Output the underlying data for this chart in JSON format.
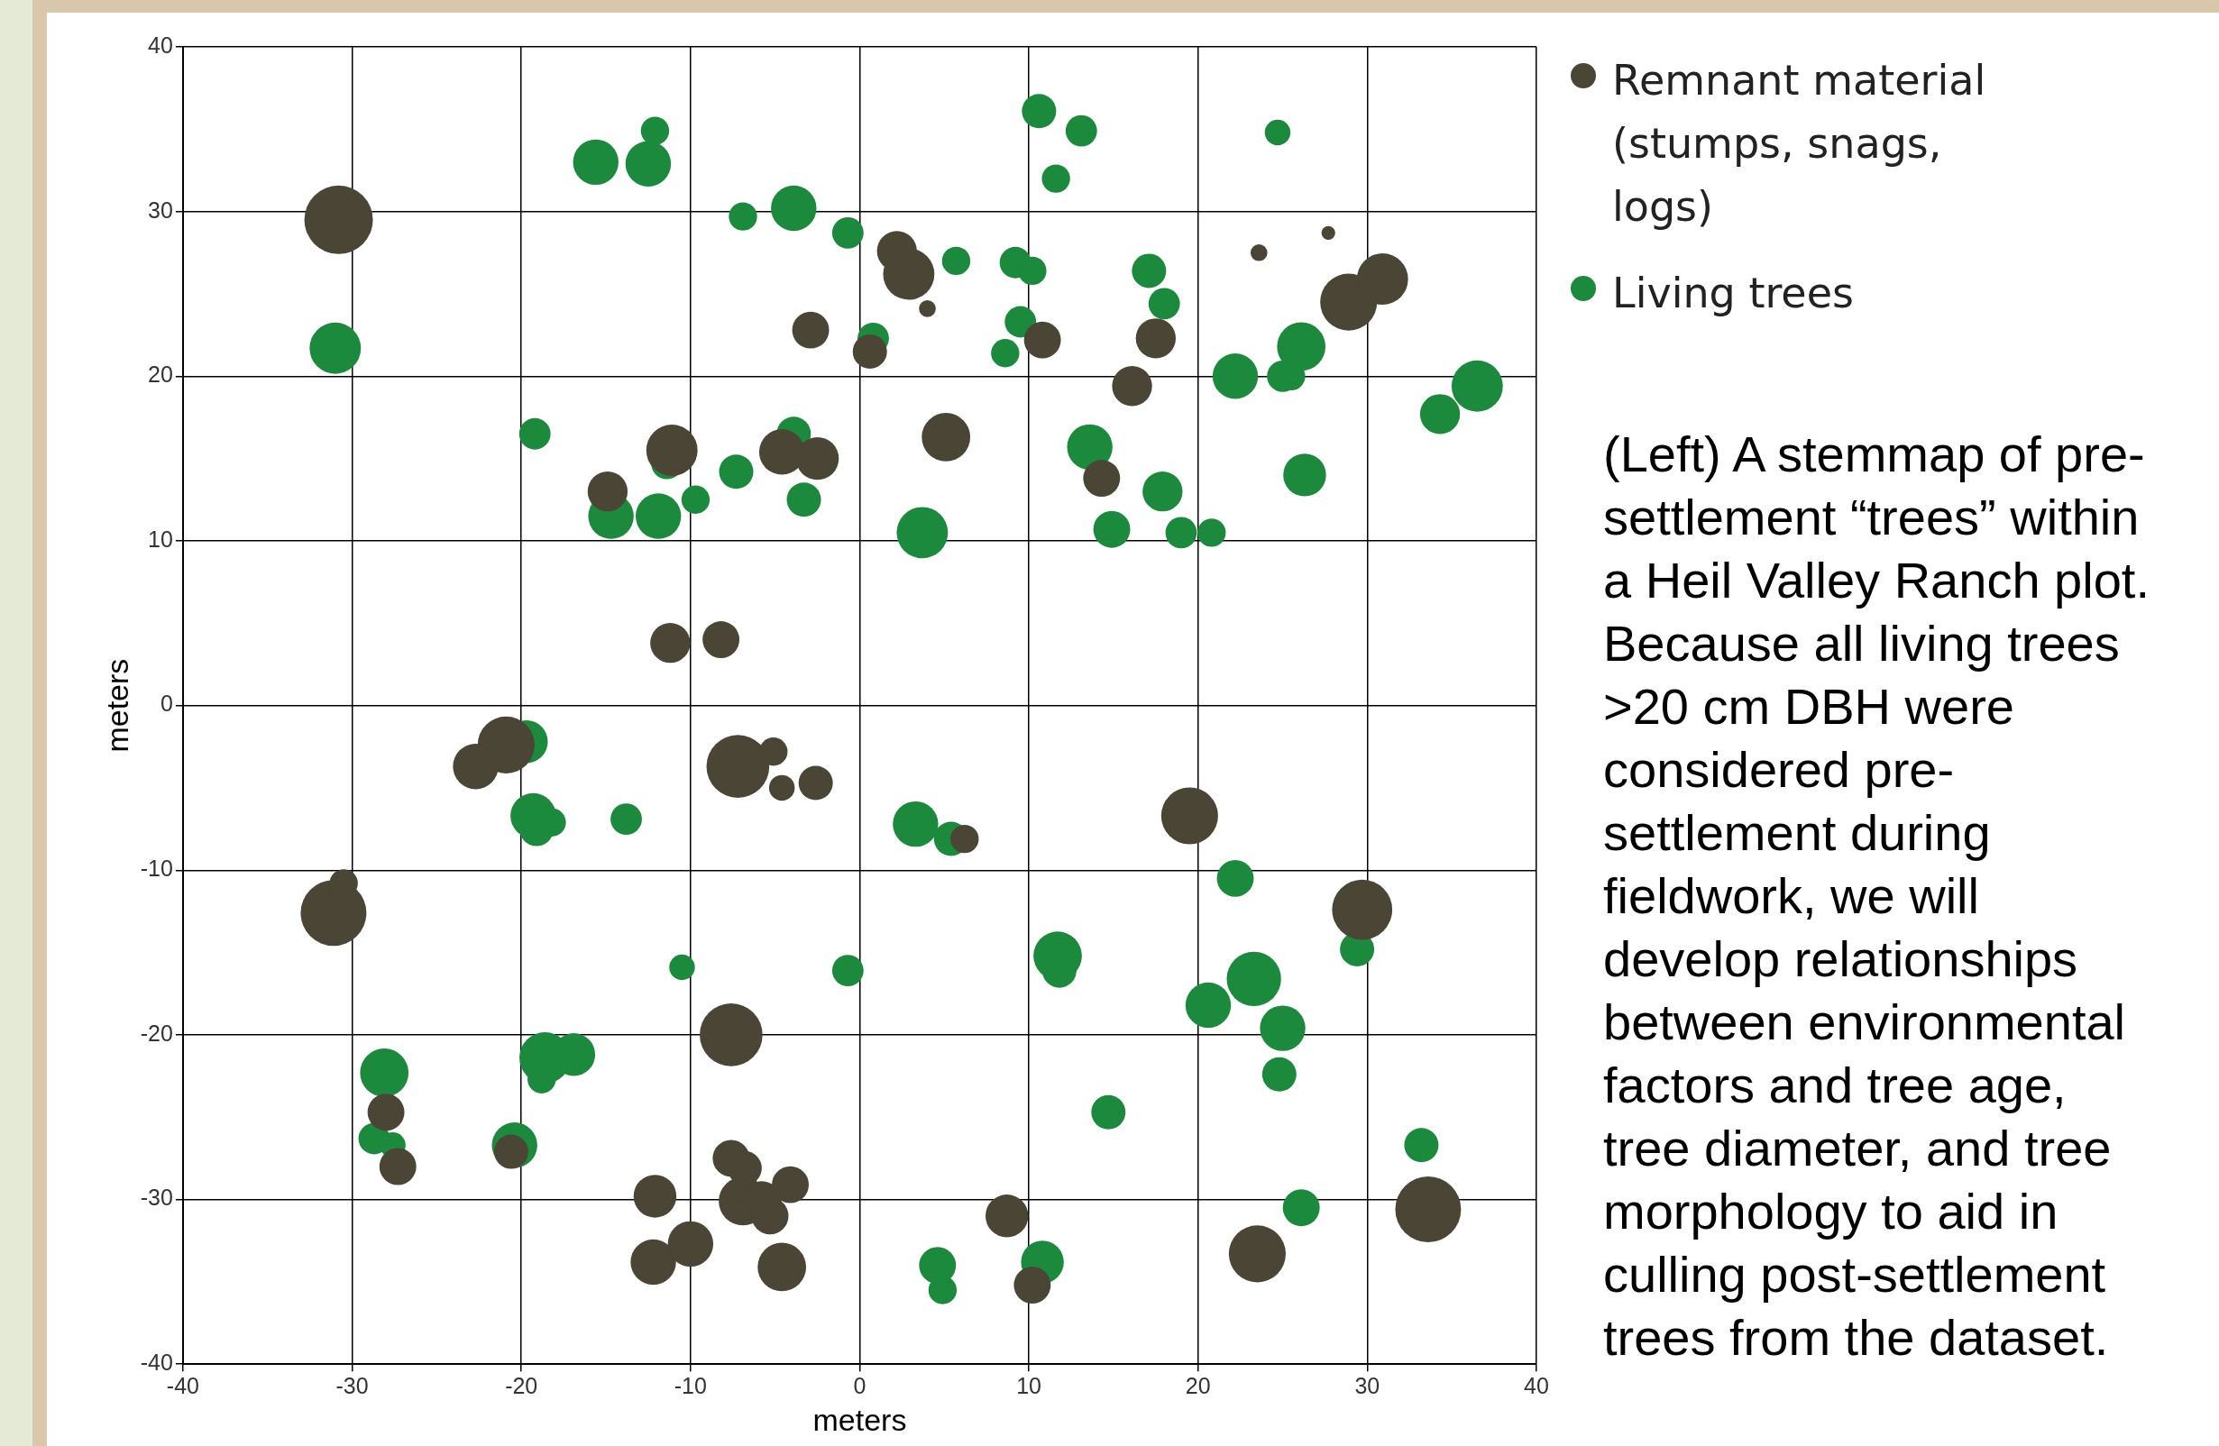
{
  "chart_data": {
    "type": "bubble",
    "xlabel": "meters",
    "ylabel": "meters",
    "xlim": [
      -40,
      40
    ],
    "ylim": [
      -40,
      40
    ],
    "xticks": [
      -40,
      -30,
      -20,
      -10,
      0,
      10,
      20,
      30,
      40
    ],
    "yticks": [
      -40,
      -30,
      -20,
      -10,
      0,
      10,
      20,
      30,
      40
    ],
    "grid": true,
    "legend": "top right",
    "marker": "circle",
    "annotations": [
      "(Left) A stemmap of pre-settlement “trees” within a Heil Valley Ranch plot.  Because all living trees >20 cm DBH were considered pre-settlement during fieldwork, we will develop relationships between environmental factors and tree age, tree diameter, and tree morphology to aid in culling post-settlement trees from the dataset."
    ],
    "series": [
      {
        "name": "Remnant material (stumps, snags, logs)",
        "color": "#4a4534",
        "x": [
          -30.8,
          -31.1,
          -30.5,
          -28.0,
          -27.3,
          -20.9,
          -22.7,
          -11.1,
          -14.9,
          -11.2,
          -8.2,
          -4.6,
          -2.5,
          -2.9,
          0.6,
          2.2,
          2.9,
          4.0,
          5.1,
          10.8,
          14.3,
          16.1,
          17.5,
          23.6,
          27.7,
          28.9,
          30.9,
          -7.2,
          -5.1,
          -4.6,
          -2.6,
          6.2,
          19.5,
          29.7,
          -7.6,
          -12.1,
          -12.2,
          -10.0,
          -7.6,
          -6.9,
          -6.8,
          -5.8,
          -5.3,
          -4.1,
          -4.6,
          8.7,
          10.2,
          23.5,
          33.6,
          -20.6
        ],
        "values": [
          29.5,
          -12.6,
          -10.8,
          -24.7,
          -28.0,
          -2.4,
          -3.7,
          15.5,
          13.0,
          3.8,
          4.0,
          15.4,
          15.0,
          22.8,
          21.5,
          27.6,
          26.2,
          24.1,
          16.3,
          22.2,
          13.8,
          19.4,
          22.3,
          27.5,
          28.7,
          24.5,
          25.9,
          -3.7,
          -2.8,
          -5.0,
          -4.7,
          -8.1,
          -6.7,
          -12.4,
          -20.0,
          -29.8,
          -33.8,
          -32.7,
          -27.5,
          -30.1,
          -28.1,
          -30.1,
          -31.0,
          -29.1,
          -34.1,
          -31.0,
          -35.2,
          -33.3,
          -30.6,
          -27.1
        ],
        "sizes": [
          1,
          0.92,
          0.17,
          0.29,
          0.29,
          0.69,
          0.44,
          0.56,
          0.34,
          0.34,
          0.29,
          0.44,
          0.39,
          0.29,
          0.25,
          0.34,
          0.56,
          0.06,
          0.5,
          0.29,
          0.29,
          0.34,
          0.34,
          0.06,
          0.04,
          0.69,
          0.56,
          0.84,
          0.17,
          0.14,
          0.25,
          0.17,
          0.69,
          0.77,
          0.84,
          0.39,
          0.44,
          0.44,
          0.29,
          0.5,
          0.25,
          0.34,
          0.29,
          0.29,
          0.5,
          0.39,
          0.29,
          0.69,
          0.92,
          0.25
        ]
      },
      {
        "name": "Living trees",
        "color": "#1c8a3c",
        "x": [
          -31.0,
          -19.2,
          -15.6,
          -12.5,
          -12.1,
          -6.9,
          -3.9,
          -0.7,
          5.7,
          10.6,
          13.1,
          11.6,
          24.7,
          9.2,
          10.2,
          9.5,
          8.6,
          0.8,
          17.1,
          18.0,
          22.2,
          25.0,
          25.5,
          26.1,
          36.5,
          34.3,
          26.3,
          13.6,
          17.9,
          14.9,
          19.0,
          20.8,
          3.7,
          -3.9,
          -3.3,
          -7.3,
          -9.7,
          -11.4,
          -14.7,
          -11.9,
          -19.7,
          -19.3,
          -18.2,
          -19.1,
          -13.8,
          3.3,
          5.4,
          22.2,
          29.4,
          11.7,
          11.8,
          -0.7,
          -10.5,
          23.3,
          20.6,
          25.0,
          24.8,
          14.7,
          -28.1,
          -28.7,
          -27.6,
          -20.4,
          -18.6,
          -16.9,
          -18.8,
          33.2,
          26.1,
          4.6,
          4.9,
          10.8
        ],
        "values": [
          21.7,
          16.5,
          33.0,
          32.9,
          34.9,
          29.7,
          30.2,
          28.7,
          27.0,
          36.1,
          34.9,
          32.0,
          34.8,
          26.9,
          26.4,
          23.3,
          21.4,
          22.3,
          26.4,
          24.4,
          20.0,
          20.0,
          20.0,
          21.8,
          19.4,
          17.7,
          14.0,
          15.7,
          13.0,
          10.7,
          10.5,
          10.5,
          10.5,
          16.5,
          12.5,
          14.2,
          12.5,
          14.7,
          11.5,
          11.5,
          -2.2,
          -6.7,
          -7.1,
          -7.5,
          -6.9,
          -7.2,
          -8.1,
          -10.5,
          -14.8,
          -15.2,
          -16.1,
          -16.1,
          -15.9,
          -16.6,
          -18.2,
          -19.6,
          -22.4,
          -24.7,
          -22.3,
          -26.3,
          -26.7,
          -26.7,
          -21.4,
          -21.2,
          -22.7,
          -26.7,
          -30.5,
          -34.0,
          -35.5,
          -33.8
        ],
        "sizes": [
          0.56,
          0.21,
          0.44,
          0.44,
          0.17,
          0.17,
          0.44,
          0.21,
          0.17,
          0.25,
          0.21,
          0.17,
          0.14,
          0.21,
          0.17,
          0.21,
          0.17,
          0.21,
          0.25,
          0.21,
          0.44,
          0.21,
          0.17,
          0.5,
          0.56,
          0.34,
          0.39,
          0.44,
          0.34,
          0.29,
          0.21,
          0.17,
          0.56,
          0.25,
          0.25,
          0.25,
          0.17,
          0.21,
          0.44,
          0.44,
          0.39,
          0.44,
          0.17,
          0.25,
          0.21,
          0.44,
          0.25,
          0.29,
          0.25,
          0.5,
          0.25,
          0.21,
          0.14,
          0.63,
          0.44,
          0.44,
          0.25,
          0.25,
          0.5,
          0.21,
          0.14,
          0.44,
          0.56,
          0.39,
          0.17,
          0.25,
          0.29,
          0.29,
          0.17,
          0.39
        ]
      }
    ]
  }
}
